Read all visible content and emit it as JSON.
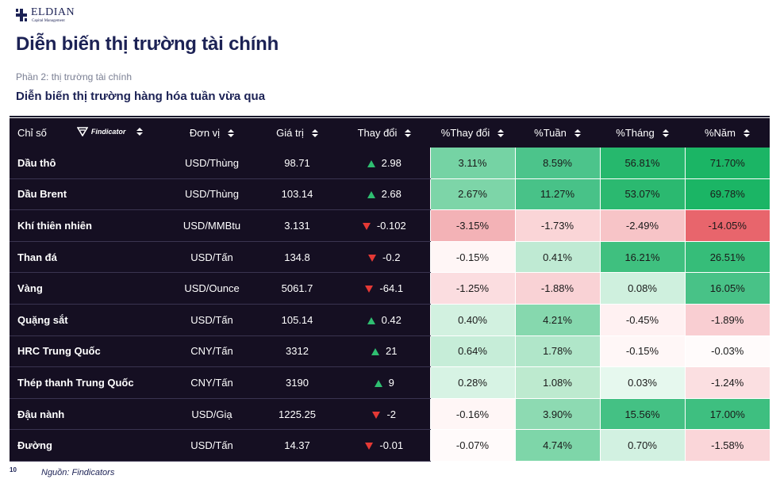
{
  "logo": {
    "name": "ELDIAN",
    "sub": "Capital Management"
  },
  "title": "Diễn biến thị trường tài chính",
  "part": "Phần 2: thị trường tài chính",
  "subtitle": "Diễn biến thị trường hàng hóa tuần vừa qua",
  "table": {
    "brand": "Findicator",
    "headers": [
      "Chỉ số",
      "Đơn vị",
      "Giá trị",
      "Thay đổi",
      "%Thay đổi",
      "%Tuần",
      "%Tháng",
      "%Năm"
    ],
    "rows": [
      {
        "name": "Dầu thô",
        "unit": "USD/Thùng",
        "value": "98.71",
        "dir": "up",
        "change": "2.98",
        "pct": "3.11%",
        "week": "8.59%",
        "month": "56.81%",
        "year": "71.70%",
        "colors": [
          "#75d3a4",
          "#4cc48b",
          "#26b86d",
          "#1bb565"
        ]
      },
      {
        "name": "Dầu Brent",
        "unit": "USD/Thùng",
        "value": "103.14",
        "dir": "up",
        "change": "2.68",
        "pct": "2.67%",
        "week": "11.27%",
        "month": "53.07%",
        "year": "69.78%",
        "colors": [
          "#7dd5a8",
          "#48c288",
          "#2bb970",
          "#1bb565"
        ]
      },
      {
        "name": "Khí thiên nhiên",
        "unit": "USD/MMBtu",
        "value": "3.131",
        "dir": "down",
        "change": "-0.102",
        "pct": "-3.15%",
        "week": "-1.73%",
        "month": "-2.49%",
        "year": "-14.05%",
        "colors": [
          "#f3b2b6",
          "#fad5d7",
          "#f7c4c7",
          "#e8656c"
        ]
      },
      {
        "name": "Than đá",
        "unit": "USD/Tấn",
        "value": "134.8",
        "dir": "down",
        "change": "-0.2",
        "pct": "-0.15%",
        "week": "0.41%",
        "month": "16.21%",
        "year": "26.51%",
        "colors": [
          "#fff6f6",
          "#bfead3",
          "#3fc07f",
          "#36bd79"
        ]
      },
      {
        "name": "Vàng",
        "unit": "USD/Ounce",
        "value": "5061.7",
        "dir": "down",
        "change": "-64.1",
        "pct": "-1.25%",
        "week": "-1.88%",
        "month": "0.08%",
        "year": "16.05%",
        "colors": [
          "#fbdde0",
          "#f9d2d5",
          "#cff0de",
          "#48c287"
        ]
      },
      {
        "name": "Quặng sắt",
        "unit": "USD/Tấn",
        "value": "105.14",
        "dir": "up",
        "change": "0.42",
        "pct": "0.40%",
        "week": "4.21%",
        "month": "-0.45%",
        "year": "-1.89%",
        "colors": [
          "#d2f1e0",
          "#86d8ae",
          "#fff1f2",
          "#f9ced2"
        ]
      },
      {
        "name": "HRC Trung Quốc",
        "unit": "CNY/Tấn",
        "value": "3312",
        "dir": "up",
        "change": "21",
        "pct": "0.64%",
        "week": "1.78%",
        "month": "-0.15%",
        "year": "-0.03%",
        "colors": [
          "#c6edd8",
          "#b0e6c9",
          "#fff7f7",
          "#fffbfb"
        ]
      },
      {
        "name": "Thép thanh Trung Quốc",
        "unit": "CNY/Tấn",
        "value": "3190",
        "dir": "up",
        "change": "9",
        "pct": "0.28%",
        "week": "1.08%",
        "month": "0.03%",
        "year": "-1.24%",
        "colors": [
          "#d7f3e4",
          "#bdeacf",
          "#e6f8ee",
          "#fbdfe1"
        ]
      },
      {
        "name": "Đậu nành",
        "unit": "USD/Giạ",
        "value": "1225.25",
        "dir": "down",
        "change": "-2",
        "pct": "-0.16%",
        "week": "3.90%",
        "month": "15.56%",
        "year": "17.00%",
        "colors": [
          "#fff6f6",
          "#8ddab2",
          "#44c184",
          "#3ebf80"
        ]
      },
      {
        "name": "Đường",
        "unit": "USD/Tấn",
        "value": "14.37",
        "dir": "down",
        "change": "-0.01",
        "pct": "-0.07%",
        "week": "4.74%",
        "month": "0.70%",
        "year": "-1.58%",
        "colors": [
          "#fffafa",
          "#7ed6a9",
          "#d2f1e1",
          "#fad6d9"
        ]
      }
    ]
  },
  "footer": {
    "page": "10",
    "source": "Nguồn: Findicators"
  }
}
